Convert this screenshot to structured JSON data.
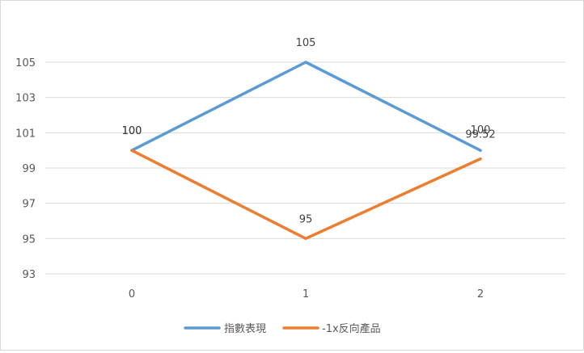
{
  "chart_data": {
    "type": "line",
    "categories": [
      "0",
      "1",
      "2"
    ],
    "series": [
      {
        "name": "指數表現",
        "values": [
          100,
          105,
          100
        ],
        "labels": [
          "100",
          "105",
          "100"
        ],
        "color": "#5b9bd5"
      },
      {
        "name": "-1x反向產品",
        "values": [
          100,
          95,
          99.52
        ],
        "labels": [
          "100",
          "95",
          "99.52"
        ],
        "color": "#ed7d31"
      }
    ],
    "yticks": [
      "93",
      "95",
      "97",
      "99",
      "101",
      "103",
      "105"
    ],
    "ylim": [
      93,
      105
    ],
    "title": "",
    "xlabel": "",
    "ylabel": "",
    "grid": true,
    "gridline_color": "#d9d9d9",
    "legend_position": "bottom"
  }
}
